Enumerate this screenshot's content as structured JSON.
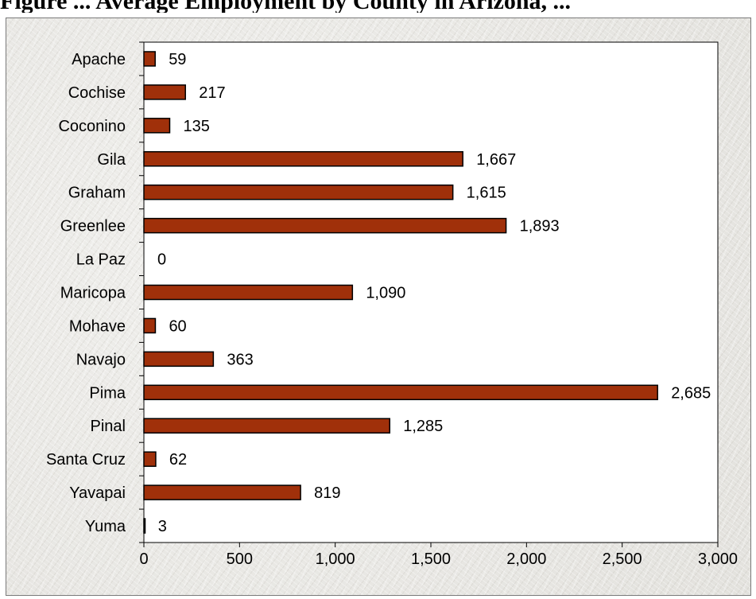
{
  "heading": "Figure ... Average Employment by County in Arizona, ...",
  "chart_data": {
    "type": "bar",
    "orientation": "horizontal",
    "title": "",
    "xlabel": "",
    "ylabel": "",
    "categories": [
      "Apache",
      "Cochise",
      "Coconino",
      "Gila",
      "Graham",
      "Greenlee",
      "La Paz",
      "Maricopa",
      "Mohave",
      "Navajo",
      "Pima",
      "Pinal",
      "Santa Cruz",
      "Yavapai",
      "Yuma"
    ],
    "values": [
      59,
      217,
      135,
      1667,
      1615,
      1893,
      0,
      1090,
      60,
      363,
      2685,
      1285,
      62,
      819,
      3
    ],
    "value_labels": [
      "59",
      "217",
      "135",
      "1,667",
      "1,615",
      "1,893",
      "0",
      "1,090",
      "60",
      "363",
      "2,685",
      "1,285",
      "62",
      "819",
      "3"
    ],
    "xlim": [
      0,
      3000
    ],
    "x_ticks": [
      0,
      500,
      1000,
      1500,
      2000,
      2500,
      3000
    ],
    "x_tick_labels": [
      "0",
      "500",
      "1,000",
      "1,500",
      "2,000",
      "2,500",
      "3,000"
    ],
    "grid": false,
    "legend": "none",
    "bar_color": "#a0300a",
    "bar_edge_color": "#000000",
    "plot_background": "#ffffff"
  }
}
